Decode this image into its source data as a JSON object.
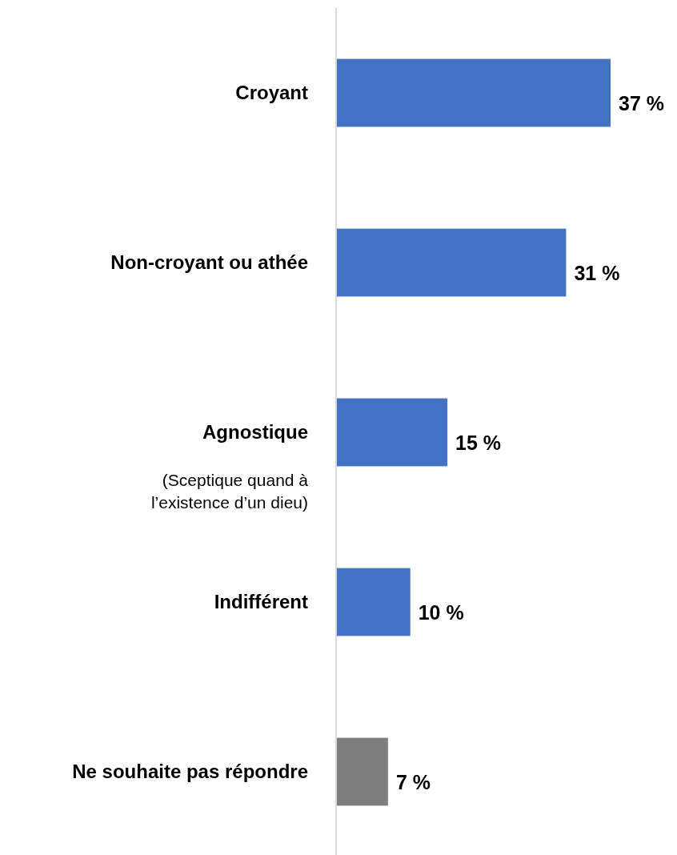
{
  "chart_data": {
    "type": "bar",
    "orientation": "horizontal",
    "categories": [
      "Croyant",
      "Non-croyant ou athée",
      "Agnostique",
      "Indifférent",
      "Ne souhaite pas répondre"
    ],
    "values": [
      37,
      31,
      15,
      10,
      7
    ],
    "colors": [
      "#4472c4",
      "#4472c4",
      "#4472c4",
      "#4472c4",
      "#7f7f7f"
    ],
    "value_labels": [
      "37 %",
      "31 %",
      "15 %",
      "10 %",
      "7 %"
    ],
    "annotations": [
      "(Sceptique quand à\nl’existence d’un dieu)"
    ]
  }
}
